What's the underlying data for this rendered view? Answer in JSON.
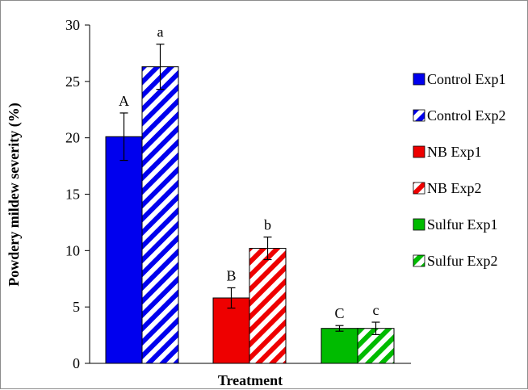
{
  "chart_data": {
    "type": "bar",
    "title": "",
    "xlabel": "Treatment",
    "ylabel": "Powdery mildew severity (%)",
    "ylim": [
      0,
      30
    ],
    "yticks": [
      0,
      5,
      10,
      15,
      20,
      25,
      30
    ],
    "grid": false,
    "legend_position": "right",
    "groups": [
      {
        "bars": [
          {
            "series": "Control Exp1",
            "value": 20.1,
            "error": 2.1,
            "label": "A"
          },
          {
            "series": "Control Exp2",
            "value": 26.3,
            "error": 2.0,
            "label": "a"
          }
        ]
      },
      {
        "bars": [
          {
            "series": "NB Exp1",
            "value": 5.8,
            "error": 0.9,
            "label": "B"
          },
          {
            "series": "NB Exp2",
            "value": 10.2,
            "error": 1.0,
            "label": "b"
          }
        ]
      },
      {
        "bars": [
          {
            "series": "Sulfur Exp1",
            "value": 3.1,
            "error": 0.25,
            "label": "C"
          },
          {
            "series": "Sulfur Exp2",
            "value": 3.1,
            "error": 0.55,
            "label": "c"
          }
        ]
      }
    ],
    "series": [
      {
        "name": "Control Exp1",
        "color": "#0000ee",
        "pattern": "solid"
      },
      {
        "name": "Control Exp2",
        "color": "#0000ee",
        "pattern": "hatched"
      },
      {
        "name": "NB Exp1",
        "color": "#ee0000",
        "pattern": "solid"
      },
      {
        "name": "NB Exp2",
        "color": "#ee0000",
        "pattern": "hatched"
      },
      {
        "name": "Sulfur Exp1",
        "color": "#00bb00",
        "pattern": "solid"
      },
      {
        "name": "Sulfur Exp2",
        "color": "#00bb00",
        "pattern": "hatched"
      }
    ]
  }
}
